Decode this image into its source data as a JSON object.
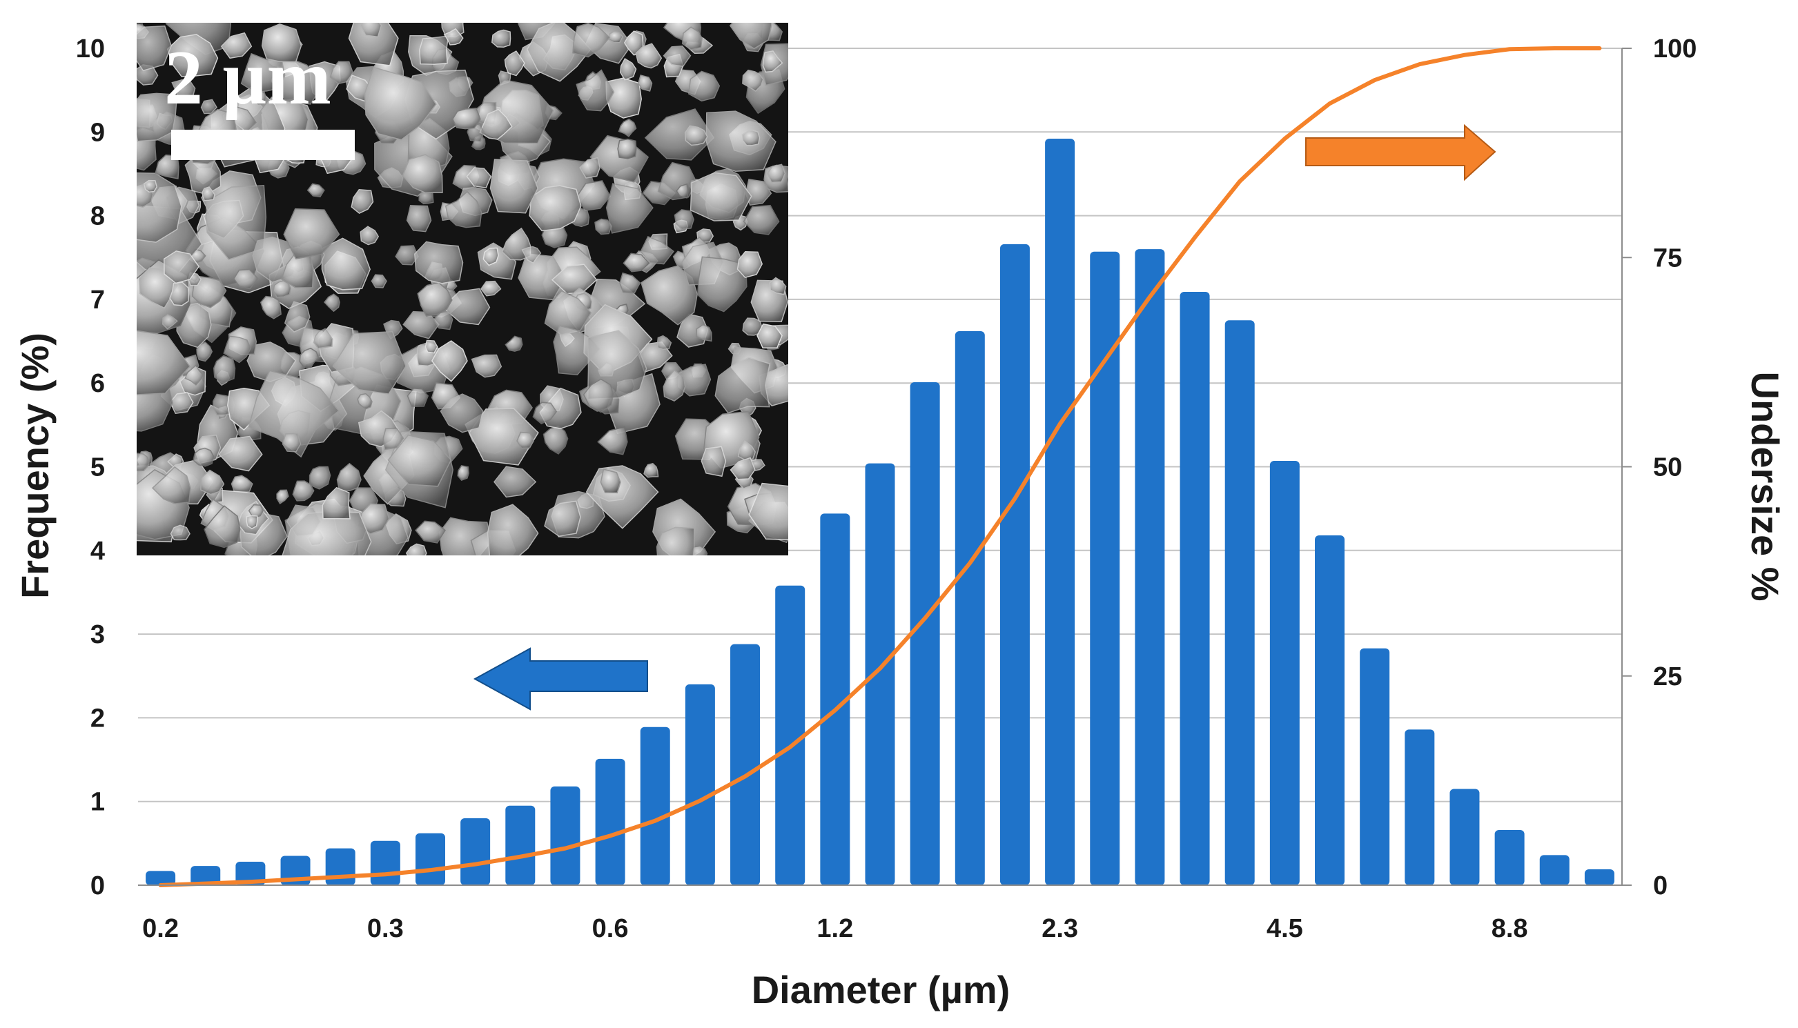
{
  "chart_data": {
    "type": "bar",
    "xlabel": "Diameter (µm)",
    "ylabel": "Frequency (%)",
    "y2label": "Undersize %",
    "ylim": [
      0,
      10
    ],
    "y2lim": [
      0,
      100
    ],
    "yticks": [
      "0",
      "1",
      "2",
      "3",
      "4",
      "5",
      "6",
      "7",
      "8",
      "9",
      "10"
    ],
    "y2ticks": [
      "0",
      "25",
      "50",
      "75",
      "100"
    ],
    "xtick_labels": [
      {
        "label": "0.2",
        "bin": 0
      },
      {
        "label": "0.3",
        "bin": 5
      },
      {
        "label": "0.6",
        "bin": 10
      },
      {
        "label": "1.2",
        "bin": 15
      },
      {
        "label": "2.3",
        "bin": 20
      },
      {
        "label": "4.5",
        "bin": 25
      },
      {
        "label": "8.8",
        "bin": 30
      }
    ],
    "grid": true,
    "series": [
      {
        "kind": "bar",
        "axis": "left",
        "color": "#1f73c9",
        "values": [
          0.17,
          0.23,
          0.28,
          0.35,
          0.44,
          0.53,
          0.62,
          0.8,
          0.95,
          1.18,
          1.51,
          1.89,
          2.4,
          2.88,
          3.58,
          4.44,
          5.04,
          6.01,
          6.62,
          7.66,
          8.92,
          7.57,
          7.6,
          7.09,
          6.75,
          5.07,
          4.18,
          2.83,
          1.86,
          1.15,
          0.66,
          0.36,
          0.19
        ]
      },
      {
        "kind": "line",
        "axis": "right",
        "color": "#f5822a",
        "values": [
          0.0,
          0.2,
          0.4,
          0.7,
          1.0,
          1.3,
          1.8,
          2.5,
          3.4,
          4.4,
          5.9,
          7.7,
          10.1,
          13.0,
          16.5,
          20.9,
          25.9,
          31.9,
          38.5,
          46.2,
          55.1,
          62.7,
          70.3,
          77.4,
          84.1,
          89.2,
          93.4,
          96.2,
          98.1,
          99.2,
          99.9,
          100.0,
          100.0
        ]
      }
    ],
    "annotations": [
      {
        "shape": "arrow-left",
        "color": "#1f73c9",
        "meaning": "bars read against left axis"
      },
      {
        "shape": "arrow-right",
        "color": "#f5822a",
        "meaning": "line reads against right axis"
      }
    ]
  },
  "inset": {
    "scale_bar_label": "2 µm"
  }
}
